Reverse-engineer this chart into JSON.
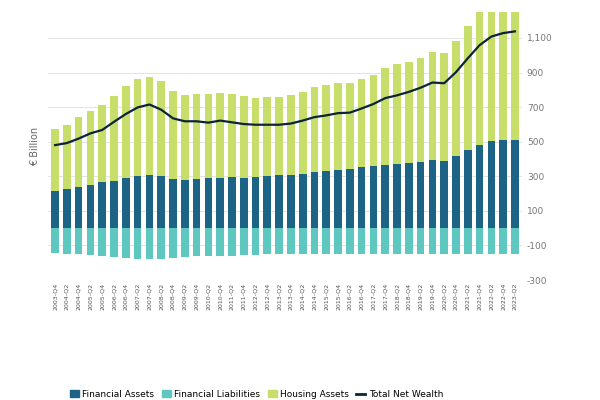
{
  "quarters": [
    "2003-Q4",
    "2004-Q2",
    "2004-Q4",
    "2005-Q2",
    "2005-Q4",
    "2006-Q2",
    "2006-Q4",
    "2007-Q2",
    "2007-Q4",
    "2008-Q2",
    "2008-Q4",
    "2009-Q2",
    "2009-Q4",
    "2010-Q2",
    "2010-Q4",
    "2011-Q2",
    "2011-Q4",
    "2012-Q2",
    "2012-Q4",
    "2013-Q2",
    "2013-Q4",
    "2014-Q2",
    "2014-Q4",
    "2015-Q2",
    "2015-Q4",
    "2016-Q2",
    "2016-Q4",
    "2017-Q2",
    "2017-Q4",
    "2018-Q2",
    "2018-Q4",
    "2019-Q2",
    "2019-Q4",
    "2020-Q2",
    "2020-Q4",
    "2021-Q2",
    "2021-Q4",
    "2022-Q2",
    "2022-Q4",
    "2023-Q2"
  ],
  "financial_assets": [
    215,
    225,
    240,
    250,
    265,
    275,
    290,
    300,
    305,
    300,
    285,
    280,
    285,
    288,
    292,
    295,
    292,
    295,
    300,
    305,
    310,
    315,
    325,
    330,
    338,
    342,
    352,
    358,
    368,
    372,
    378,
    385,
    395,
    390,
    420,
    450,
    480,
    505,
    510,
    510
  ],
  "housing_assets": [
    360,
    370,
    400,
    430,
    450,
    490,
    530,
    560,
    570,
    550,
    510,
    490,
    490,
    485,
    490,
    480,
    470,
    460,
    460,
    455,
    460,
    475,
    490,
    495,
    500,
    500,
    510,
    530,
    560,
    575,
    585,
    600,
    625,
    620,
    660,
    720,
    790,
    840,
    880,
    910
  ],
  "financial_liabilities": [
    -145,
    -148,
    -152,
    -157,
    -162,
    -167,
    -172,
    -177,
    -177,
    -177,
    -172,
    -167,
    -162,
    -160,
    -160,
    -159,
    -157,
    -154,
    -152,
    -150,
    -150,
    -150,
    -152,
    -152,
    -152,
    -150,
    -150,
    -150,
    -150,
    -150,
    -150,
    -150,
    -152,
    -150,
    -150,
    -150,
    -150,
    -150,
    -150,
    -150
  ],
  "total_net_wealth": [
    480,
    492,
    518,
    548,
    568,
    615,
    660,
    698,
    715,
    685,
    635,
    618,
    618,
    610,
    622,
    612,
    602,
    598,
    598,
    598,
    605,
    622,
    642,
    652,
    665,
    668,
    692,
    718,
    752,
    768,
    788,
    812,
    842,
    838,
    902,
    982,
    1058,
    1108,
    1128,
    1138
  ],
  "financial_assets_color": "#1d6385",
  "housing_assets_color": "#c8de6a",
  "financial_liabilities_color": "#5ec8c0",
  "total_net_wealth_color": "#0d2438",
  "ylabel": "€ Billion",
  "ylim": [
    -300,
    1250
  ],
  "yticks": [
    -300,
    -100,
    100,
    300,
    500,
    700,
    900,
    1100
  ],
  "bg_color": "#ffffff",
  "grid_color": "#d8d8d8",
  "legend_labels": [
    "Financial Assets",
    "Financial Liabilities",
    "Housing Assets",
    "Total Net Wealth"
  ]
}
